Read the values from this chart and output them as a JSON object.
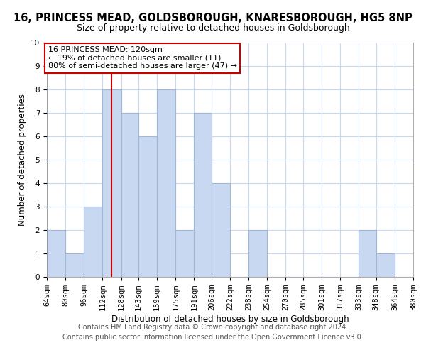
{
  "title": "16, PRINCESS MEAD, GOLDSBOROUGH, KNARESBOROUGH, HG5 8NP",
  "subtitle": "Size of property relative to detached houses in Goldsborough",
  "xlabel": "Distribution of detached houses by size in Goldsborough",
  "ylabel": "Number of detached properties",
  "bar_color": "#c8d8f0",
  "bar_edge_color": "#a0b8d8",
  "reference_line_x": 120,
  "reference_line_color": "#cc0000",
  "bins": [
    64,
    80,
    96,
    112,
    128,
    143,
    159,
    175,
    191,
    206,
    222,
    238,
    254,
    270,
    285,
    301,
    317,
    333,
    348,
    364,
    380
  ],
  "bin_labels": [
    "64sqm",
    "80sqm",
    "96sqm",
    "112sqm",
    "128sqm",
    "143sqm",
    "159sqm",
    "175sqm",
    "191sqm",
    "206sqm",
    "222sqm",
    "238sqm",
    "254sqm",
    "270sqm",
    "285sqm",
    "301sqm",
    "317sqm",
    "333sqm",
    "348sqm",
    "364sqm",
    "380sqm"
  ],
  "counts": [
    2,
    1,
    3,
    8,
    7,
    6,
    8,
    2,
    7,
    4,
    0,
    2,
    0,
    0,
    0,
    0,
    0,
    2,
    1,
    0
  ],
  "ylim": [
    0,
    10
  ],
  "annotation_title": "16 PRINCESS MEAD: 120sqm",
  "annotation_line1": "← 19% of detached houses are smaller (11)",
  "annotation_line2": "80% of semi-detached houses are larger (47) →",
  "annotation_box_color": "#ffffff",
  "annotation_box_edge_color": "#cc0000",
  "footer_line1": "Contains HM Land Registry data © Crown copyright and database right 2024.",
  "footer_line2": "Contains public sector information licensed under the Open Government Licence v3.0.",
  "bg_color": "#ffffff",
  "grid_color": "#c8d8f0",
  "title_fontsize": 10.5,
  "subtitle_fontsize": 9,
  "axis_label_fontsize": 8.5,
  "tick_fontsize": 7.5,
  "annotation_fontsize": 8,
  "footer_fontsize": 7
}
